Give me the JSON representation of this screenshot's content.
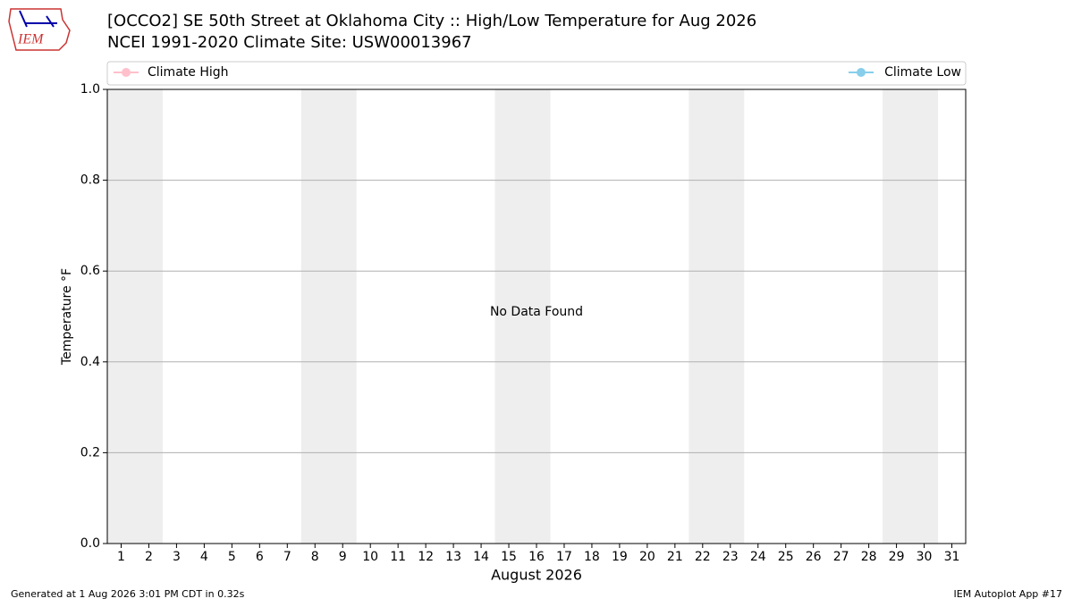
{
  "chart_data": {
    "type": "line",
    "logo": "IEM",
    "title": "[OCCO2] SE 50th Street at Oklahoma City :: High/Low Temperature for Aug 2026",
    "subtitle": "NCEI 1991-2020 Climate Site: USW00013967",
    "xlabel": "August 2026",
    "ylabel": "Temperature °F",
    "annotation": "No Data Found",
    "footer_left": "Generated at 1 Aug 2026 3:01 PM CDT in 0.32s",
    "footer_right": "IEM Autoplot App #17",
    "x": [
      1,
      2,
      3,
      4,
      5,
      6,
      7,
      8,
      9,
      10,
      11,
      12,
      13,
      14,
      15,
      16,
      17,
      18,
      19,
      20,
      21,
      22,
      23,
      24,
      25,
      26,
      27,
      28,
      29,
      30,
      31
    ],
    "xlim": [
      0.5,
      31.5
    ],
    "ylim": [
      0,
      1
    ],
    "yticks": [
      {
        "value": 0,
        "label": "0.0"
      },
      {
        "value": 0.2,
        "label": "0.2"
      },
      {
        "value": 0.4,
        "label": "0.4"
      },
      {
        "value": 0.6,
        "label": "0.6"
      },
      {
        "value": 0.8,
        "label": "0.8"
      },
      {
        "value": 1,
        "label": "1.0"
      }
    ],
    "grid": true,
    "shaded_ranges": [
      [
        0.5,
        2.5
      ],
      [
        7.5,
        9.5
      ],
      [
        14.5,
        16.5
      ],
      [
        21.5,
        23.5
      ],
      [
        28.5,
        30.5
      ]
    ],
    "shade_color": "#eeeeee",
    "series": [
      {
        "name": "Climate High",
        "color": "#ffc0cb",
        "values": [
          null,
          null,
          null,
          null,
          null,
          null,
          null,
          null,
          null,
          null,
          null,
          null,
          null,
          null,
          null,
          null,
          null,
          null,
          null,
          null,
          null,
          null,
          null,
          null,
          null,
          null,
          null,
          null,
          null,
          null,
          null
        ]
      },
      {
        "name": "Climate Low",
        "color": "#87ceeb",
        "values": [
          null,
          null,
          null,
          null,
          null,
          null,
          null,
          null,
          null,
          null,
          null,
          null,
          null,
          null,
          null,
          null,
          null,
          null,
          null,
          null,
          null,
          null,
          null,
          null,
          null,
          null,
          null,
          null,
          null,
          null,
          null
        ]
      }
    ]
  }
}
